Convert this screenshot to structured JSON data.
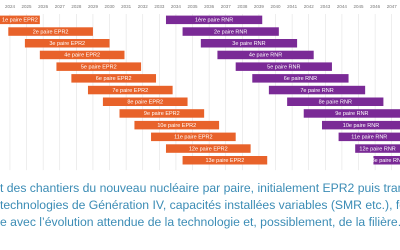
{
  "chart_data": {
    "type": "gantt",
    "xlim": [
      2023.4,
      2047.5
    ],
    "xticks": [
      2024,
      2025,
      2026,
      2027,
      2028,
      2029,
      2030,
      2031,
      2032,
      2033,
      2034,
      2035,
      2036,
      2037,
      2038,
      2039,
      2040,
      2041,
      2042,
      2043,
      2044,
      2045,
      2046,
      2047
    ],
    "grid": true,
    "series": [
      {
        "color": "#e8622a",
        "labels": [
          "1e paire EPR2",
          "2e paire EPR2",
          "3e paire EPR2",
          "4e paire EPR2",
          "5e paire EPR2",
          "6e paire EPR2",
          "7e paire EPR2",
          "8e paire EPR2",
          "9e paire EPR2",
          "10e paire EPR2",
          "11e paire EPR2",
          "12e paire EPR2",
          "13e paire EPR2"
        ],
        "start": [
          2021.0,
          2023.9,
          2024.9,
          2025.8,
          2026.8,
          2027.7,
          2028.7,
          2029.6,
          2030.6,
          2031.5,
          2032.5,
          2033.4,
          2034.4
        ],
        "end": [
          2025.8,
          2029.0,
          2030.0,
          2030.9,
          2031.9,
          2032.8,
          2033.8,
          2034.7,
          2035.7,
          2036.6,
          2037.6,
          2038.5,
          2039.5
        ]
      },
      {
        "color": "#7a2a96",
        "labels": [
          "1ère paire RNR",
          "2e paire RNR",
          "3e paire RNR",
          "4e paire RNR",
          "5e paire RNR",
          "6e paire RNR",
          "7e paire RNR",
          "8e paire RNR",
          "9e paire RNR",
          "10e paire RNR",
          "11e paire RNR",
          "12e paire RNR",
          "13e paire RNR"
        ],
        "start": [
          2033.4,
          2034.4,
          2035.5,
          2036.5,
          2037.6,
          2038.6,
          2039.6,
          2040.7,
          2041.7,
          2042.8,
          2043.8,
          2044.8,
          2045.9
        ],
        "end": [
          2039.2,
          2040.2,
          2041.3,
          2042.3,
          2043.4,
          2044.4,
          2045.4,
          2046.5,
          2047.5,
          2048.6,
          2049.6,
          2050.6,
          2051.7
        ]
      }
    ],
    "caption": [
      "t des chantiers du nouveau nucléaire par paire, initialement EPR2 puis transition v",
      "technologies de Génération IV, capacités installées variables (SMR etc.), fournisseu",
      "e avec l’évolution attendue de la technologie et, possiblement, de la filière."
    ]
  }
}
